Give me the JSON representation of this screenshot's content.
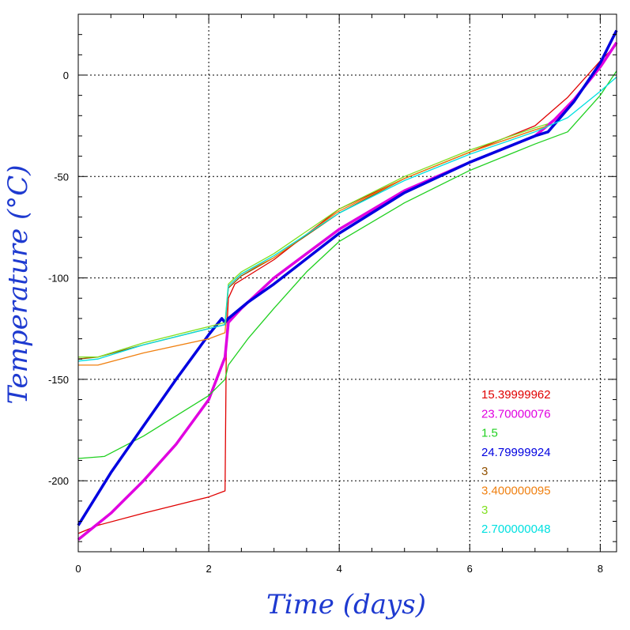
{
  "chart_data": {
    "type": "line",
    "xlabel": "Time (days)",
    "ylabel": "Temperature (°C)",
    "xlim": [
      0,
      8.25
    ],
    "ylim": [
      -235,
      30
    ],
    "xticks": [
      0,
      2,
      4,
      6,
      8
    ],
    "yticks": [
      0,
      -50,
      -100,
      -150,
      -200
    ],
    "grid": true,
    "legend_position": "bottom-right",
    "series": [
      {
        "name": "15.39999962",
        "color": "#e00000",
        "points": [
          [
            0,
            -226
          ],
          [
            0.3,
            -222
          ],
          [
            1,
            -216
          ],
          [
            1.5,
            -212
          ],
          [
            2,
            -208
          ],
          [
            2.25,
            -205
          ],
          [
            2.27,
            -130
          ],
          [
            2.3,
            -110
          ],
          [
            2.4,
            -103
          ],
          [
            2.6,
            -99
          ],
          [
            3,
            -91
          ],
          [
            4,
            -66
          ],
          [
            5,
            -51
          ],
          [
            6,
            -38
          ],
          [
            7,
            -25
          ],
          [
            7.5,
            -11
          ],
          [
            8,
            7
          ],
          [
            8.25,
            15
          ]
        ]
      },
      {
        "name": "23.70000076",
        "color": "#e000e0",
        "points": [
          [
            0,
            -229
          ],
          [
            0.5,
            -216
          ],
          [
            1,
            -200
          ],
          [
            1.5,
            -182
          ],
          [
            2,
            -160
          ],
          [
            2.25,
            -139
          ],
          [
            2.3,
            -122
          ],
          [
            2.5,
            -115
          ],
          [
            3,
            -100
          ],
          [
            4,
            -76
          ],
          [
            5,
            -57
          ],
          [
            6,
            -43
          ],
          [
            7,
            -30
          ],
          [
            7.3,
            -22
          ],
          [
            7.6,
            -12
          ],
          [
            8,
            4
          ],
          [
            8.25,
            16
          ]
        ]
      },
      {
        "name": "1.5",
        "color": "#20d020",
        "points": [
          [
            0,
            -189
          ],
          [
            0.4,
            -188
          ],
          [
            1,
            -178
          ],
          [
            1.5,
            -168
          ],
          [
            2,
            -158
          ],
          [
            2.25,
            -150
          ],
          [
            2.3,
            -143
          ],
          [
            2.6,
            -130
          ],
          [
            3,
            -115
          ],
          [
            3.5,
            -97
          ],
          [
            4,
            -82
          ],
          [
            5,
            -63
          ],
          [
            6,
            -47
          ],
          [
            7,
            -34
          ],
          [
            7.5,
            -28
          ],
          [
            8,
            -10
          ],
          [
            8.25,
            2
          ]
        ]
      },
      {
        "name": "24.79999924",
        "color": "#0000e0",
        "points": [
          [
            0,
            -222
          ],
          [
            0.5,
            -196
          ],
          [
            1,
            -173
          ],
          [
            1.5,
            -150
          ],
          [
            2,
            -128
          ],
          [
            2.2,
            -120
          ],
          [
            2.25,
            -122
          ],
          [
            2.3,
            -120
          ],
          [
            2.6,
            -112
          ],
          [
            3,
            -103
          ],
          [
            4,
            -78
          ],
          [
            5,
            -58
          ],
          [
            6,
            -43
          ],
          [
            7,
            -30
          ],
          [
            7.2,
            -28
          ],
          [
            7.6,
            -13
          ],
          [
            8,
            6
          ],
          [
            8.25,
            22
          ]
        ]
      },
      {
        "name": "3",
        "color": "#905000",
        "points": [
          [
            0,
            -140
          ],
          [
            0.3,
            -139
          ],
          [
            1,
            -133
          ],
          [
            2,
            -125
          ],
          [
            2.25,
            -123
          ],
          [
            2.3,
            -105
          ],
          [
            2.5,
            -99
          ],
          [
            3,
            -90
          ],
          [
            4,
            -68
          ],
          [
            5,
            -51
          ],
          [
            6,
            -38
          ],
          [
            7,
            -27
          ],
          [
            7.2,
            -25
          ]
        ]
      },
      {
        "name": "3.400000095",
        "color": "#f08010",
        "points": [
          [
            0,
            -143
          ],
          [
            0.3,
            -143
          ],
          [
            1,
            -137
          ],
          [
            2,
            -130
          ],
          [
            2.25,
            -127
          ],
          [
            2.3,
            -104
          ],
          [
            2.5,
            -98
          ],
          [
            3,
            -90
          ],
          [
            4,
            -67
          ],
          [
            5,
            -51
          ],
          [
            6,
            -38
          ],
          [
            7,
            -27
          ],
          [
            7.2,
            -25
          ]
        ]
      },
      {
        "name": "3",
        "color": "#80e020",
        "points": [
          [
            0,
            -139
          ],
          [
            0.3,
            -139
          ],
          [
            1,
            -132
          ],
          [
            2,
            -124
          ],
          [
            2.25,
            -122
          ],
          [
            2.3,
            -103
          ],
          [
            2.5,
            -97
          ],
          [
            3,
            -88
          ],
          [
            4,
            -66
          ],
          [
            5,
            -50
          ],
          [
            6,
            -37
          ],
          [
            7,
            -26
          ],
          [
            7.2,
            -24
          ]
        ]
      },
      {
        "name": "2.700000048",
        "color": "#00e0e0",
        "points": [
          [
            0,
            -141
          ],
          [
            0.3,
            -140
          ],
          [
            1,
            -133
          ],
          [
            2,
            -125
          ],
          [
            2.25,
            -123
          ],
          [
            2.3,
            -104
          ],
          [
            2.5,
            -98
          ],
          [
            3,
            -89
          ],
          [
            4,
            -68
          ],
          [
            5,
            -52
          ],
          [
            6,
            -39
          ],
          [
            7,
            -28
          ],
          [
            7.5,
            -21
          ],
          [
            8,
            -8
          ],
          [
            8.25,
            -1
          ]
        ]
      }
    ]
  }
}
